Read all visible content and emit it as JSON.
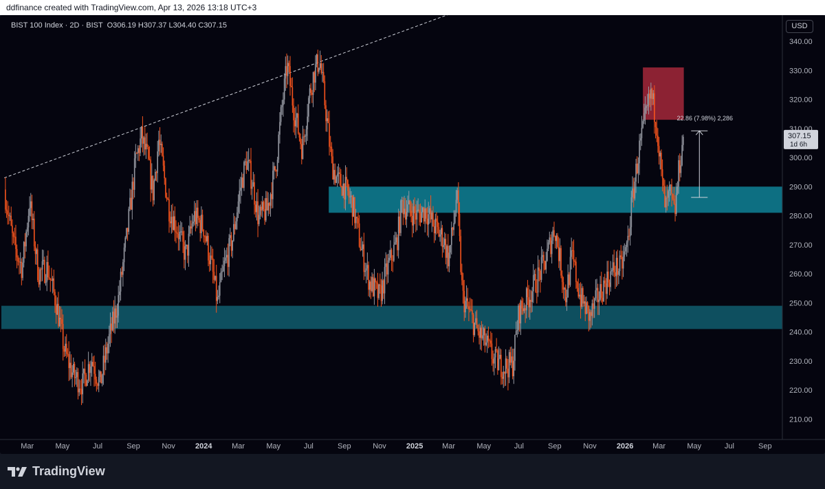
{
  "header": {
    "attribution": "ddfinance created with TradingView.com, Apr 13, 2026 13:18 UTC+3"
  },
  "legend": {
    "symbol": "BIST 100 Index · 2D · BIST",
    "open": "O306.19",
    "high": "H307.37",
    "low": "L304.40",
    "close": "C307.15"
  },
  "currency_button": "USD",
  "price_tag": {
    "value": "307.15",
    "countdown": "1d 6h"
  },
  "measure_label": "22.86 (7.98%) 2,286",
  "brand": "TradingView",
  "colors": {
    "background": "#05050f",
    "up_candle": "#9598a1",
    "down_candle": "#f7541d",
    "zone": "#0d6f82",
    "supply_zone": "#8c2233"
  },
  "chart_data": {
    "type": "candlestick",
    "symbol": "BIST 100 Index",
    "interval": "2D",
    "currency": "USD",
    "y_range": [
      203,
      349
    ],
    "y_ticks": [
      210,
      220,
      230,
      240,
      250,
      260,
      270,
      280,
      290,
      300,
      310,
      320,
      330,
      340
    ],
    "x_ticks": [
      {
        "label": "Mar",
        "date": "2023-03-01"
      },
      {
        "label": "May",
        "date": "2023-05-01"
      },
      {
        "label": "Jul",
        "date": "2023-07-01"
      },
      {
        "label": "Sep",
        "date": "2023-09-01"
      },
      {
        "label": "Nov",
        "date": "2023-11-01"
      },
      {
        "label": "2024",
        "date": "2024-01-01",
        "bold": true
      },
      {
        "label": "Mar",
        "date": "2024-03-01"
      },
      {
        "label": "May",
        "date": "2024-05-01"
      },
      {
        "label": "Jul",
        "date": "2024-07-01"
      },
      {
        "label": "Sep",
        "date": "2024-09-01"
      },
      {
        "label": "Nov",
        "date": "2024-11-01"
      },
      {
        "label": "2025",
        "date": "2025-01-01",
        "bold": true
      },
      {
        "label": "Mar",
        "date": "2025-03-01"
      },
      {
        "label": "May",
        "date": "2025-05-01"
      },
      {
        "label": "Jul",
        "date": "2025-07-01"
      },
      {
        "label": "Sep",
        "date": "2025-09-01"
      },
      {
        "label": "Nov",
        "date": "2025-11-01"
      },
      {
        "label": "2026",
        "date": "2026-01-01",
        "bold": true
      },
      {
        "label": "Mar",
        "date": "2026-03-01"
      },
      {
        "label": "May",
        "date": "2026-05-01"
      },
      {
        "label": "Jul",
        "date": "2026-07-01"
      },
      {
        "label": "Sep",
        "date": "2026-09-01"
      }
    ],
    "price_path": [
      [
        "2023-01-20",
        289
      ],
      [
        "2023-02-05",
        270
      ],
      [
        "2023-02-20",
        262
      ],
      [
        "2023-03-05",
        285
      ],
      [
        "2023-03-20",
        260
      ],
      [
        "2023-04-05",
        262
      ],
      [
        "2023-04-20",
        250
      ],
      [
        "2023-05-05",
        233
      ],
      [
        "2023-05-20",
        225
      ],
      [
        "2023-06-05",
        222
      ],
      [
        "2023-06-20",
        231
      ],
      [
        "2023-07-05",
        222
      ],
      [
        "2023-07-20",
        237
      ],
      [
        "2023-08-05",
        250
      ],
      [
        "2023-08-20",
        272
      ],
      [
        "2023-09-05",
        299
      ],
      [
        "2023-09-15",
        307
      ],
      [
        "2023-09-25",
        300
      ],
      [
        "2023-10-05",
        288
      ],
      [
        "2023-10-15",
        306
      ],
      [
        "2023-11-01",
        283
      ],
      [
        "2023-11-15",
        276
      ],
      [
        "2023-12-01",
        266
      ],
      [
        "2023-12-15",
        280
      ],
      [
        "2024-01-01",
        276
      ],
      [
        "2024-01-15",
        262
      ],
      [
        "2024-01-25",
        250
      ],
      [
        "2024-02-05",
        262
      ],
      [
        "2024-02-20",
        272
      ],
      [
        "2024-03-05",
        290
      ],
      [
        "2024-03-15",
        299
      ],
      [
        "2024-03-25",
        292
      ],
      [
        "2024-04-05",
        279
      ],
      [
        "2024-04-20",
        282
      ],
      [
        "2024-05-05",
        297
      ],
      [
        "2024-05-15",
        316
      ],
      [
        "2024-05-25",
        332
      ],
      [
        "2024-06-05",
        317
      ],
      [
        "2024-06-20",
        303
      ],
      [
        "2024-07-01",
        320
      ],
      [
        "2024-07-10",
        329
      ],
      [
        "2024-07-20",
        334
      ],
      [
        "2024-08-01",
        314
      ],
      [
        "2024-08-10",
        298
      ],
      [
        "2024-08-20",
        292
      ],
      [
        "2024-09-01",
        290
      ],
      [
        "2024-09-15",
        284
      ],
      [
        "2024-10-01",
        268
      ],
      [
        "2024-10-15",
        257
      ],
      [
        "2024-11-01",
        252
      ],
      [
        "2024-11-15",
        262
      ],
      [
        "2024-12-01",
        271
      ],
      [
        "2024-12-10",
        284
      ],
      [
        "2024-12-20",
        282
      ],
      [
        "2025-01-05",
        280
      ],
      [
        "2025-01-20",
        282
      ],
      [
        "2025-02-05",
        276
      ],
      [
        "2025-02-20",
        272
      ],
      [
        "2025-03-01",
        265
      ],
      [
        "2025-03-10",
        278
      ],
      [
        "2025-03-15",
        288
      ],
      [
        "2025-03-25",
        252
      ],
      [
        "2025-04-05",
        247
      ],
      [
        "2025-04-20",
        240
      ],
      [
        "2025-05-05",
        236
      ],
      [
        "2025-05-20",
        230
      ],
      [
        "2025-06-05",
        228
      ],
      [
        "2025-06-20",
        229
      ],
      [
        "2025-07-01",
        247
      ],
      [
        "2025-07-15",
        251
      ],
      [
        "2025-08-01",
        258
      ],
      [
        "2025-08-15",
        264
      ],
      [
        "2025-09-01",
        276
      ],
      [
        "2025-09-10",
        265
      ],
      [
        "2025-09-20",
        252
      ],
      [
        "2025-10-01",
        266
      ],
      [
        "2025-10-15",
        252
      ],
      [
        "2025-11-01",
        245
      ],
      [
        "2025-11-15",
        252
      ],
      [
        "2025-12-01",
        258
      ],
      [
        "2025-12-15",
        262
      ],
      [
        "2025-12-25",
        262
      ],
      [
        "2026-01-05",
        270
      ],
      [
        "2026-01-15",
        288
      ],
      [
        "2026-01-25",
        302
      ],
      [
        "2026-02-05",
        313
      ],
      [
        "2026-02-15",
        322
      ],
      [
        "2026-02-25",
        312
      ],
      [
        "2026-03-05",
        294
      ],
      [
        "2026-03-12",
        282
      ],
      [
        "2026-03-20",
        288
      ],
      [
        "2026-03-28",
        280
      ],
      [
        "2026-04-05",
        297
      ],
      [
        "2026-04-13",
        307
      ]
    ],
    "zones": [
      {
        "name": "upper",
        "from": "2024-08-05",
        "to": "2026-04-20",
        "low": 281,
        "high": 290,
        "color": "#0d6f82"
      },
      {
        "name": "lower",
        "from": "2023-01-15",
        "to": "2026-04-20",
        "low": 241,
        "high": 249,
        "color": "#0e4f5f"
      },
      {
        "name": "supply",
        "from": "2026-02-01",
        "to": "2026-04-13",
        "low": 313,
        "high": 331,
        "color": "#8c2233"
      }
    ],
    "trendline": {
      "from": [
        "2023-01-20",
        293
      ],
      "to": [
        "2025-03-25",
        351
      ],
      "style": "dashed"
    },
    "measure": {
      "date": "2026-05-10",
      "from": 286.3,
      "to": 309.2
    },
    "last_price": 307.15
  }
}
